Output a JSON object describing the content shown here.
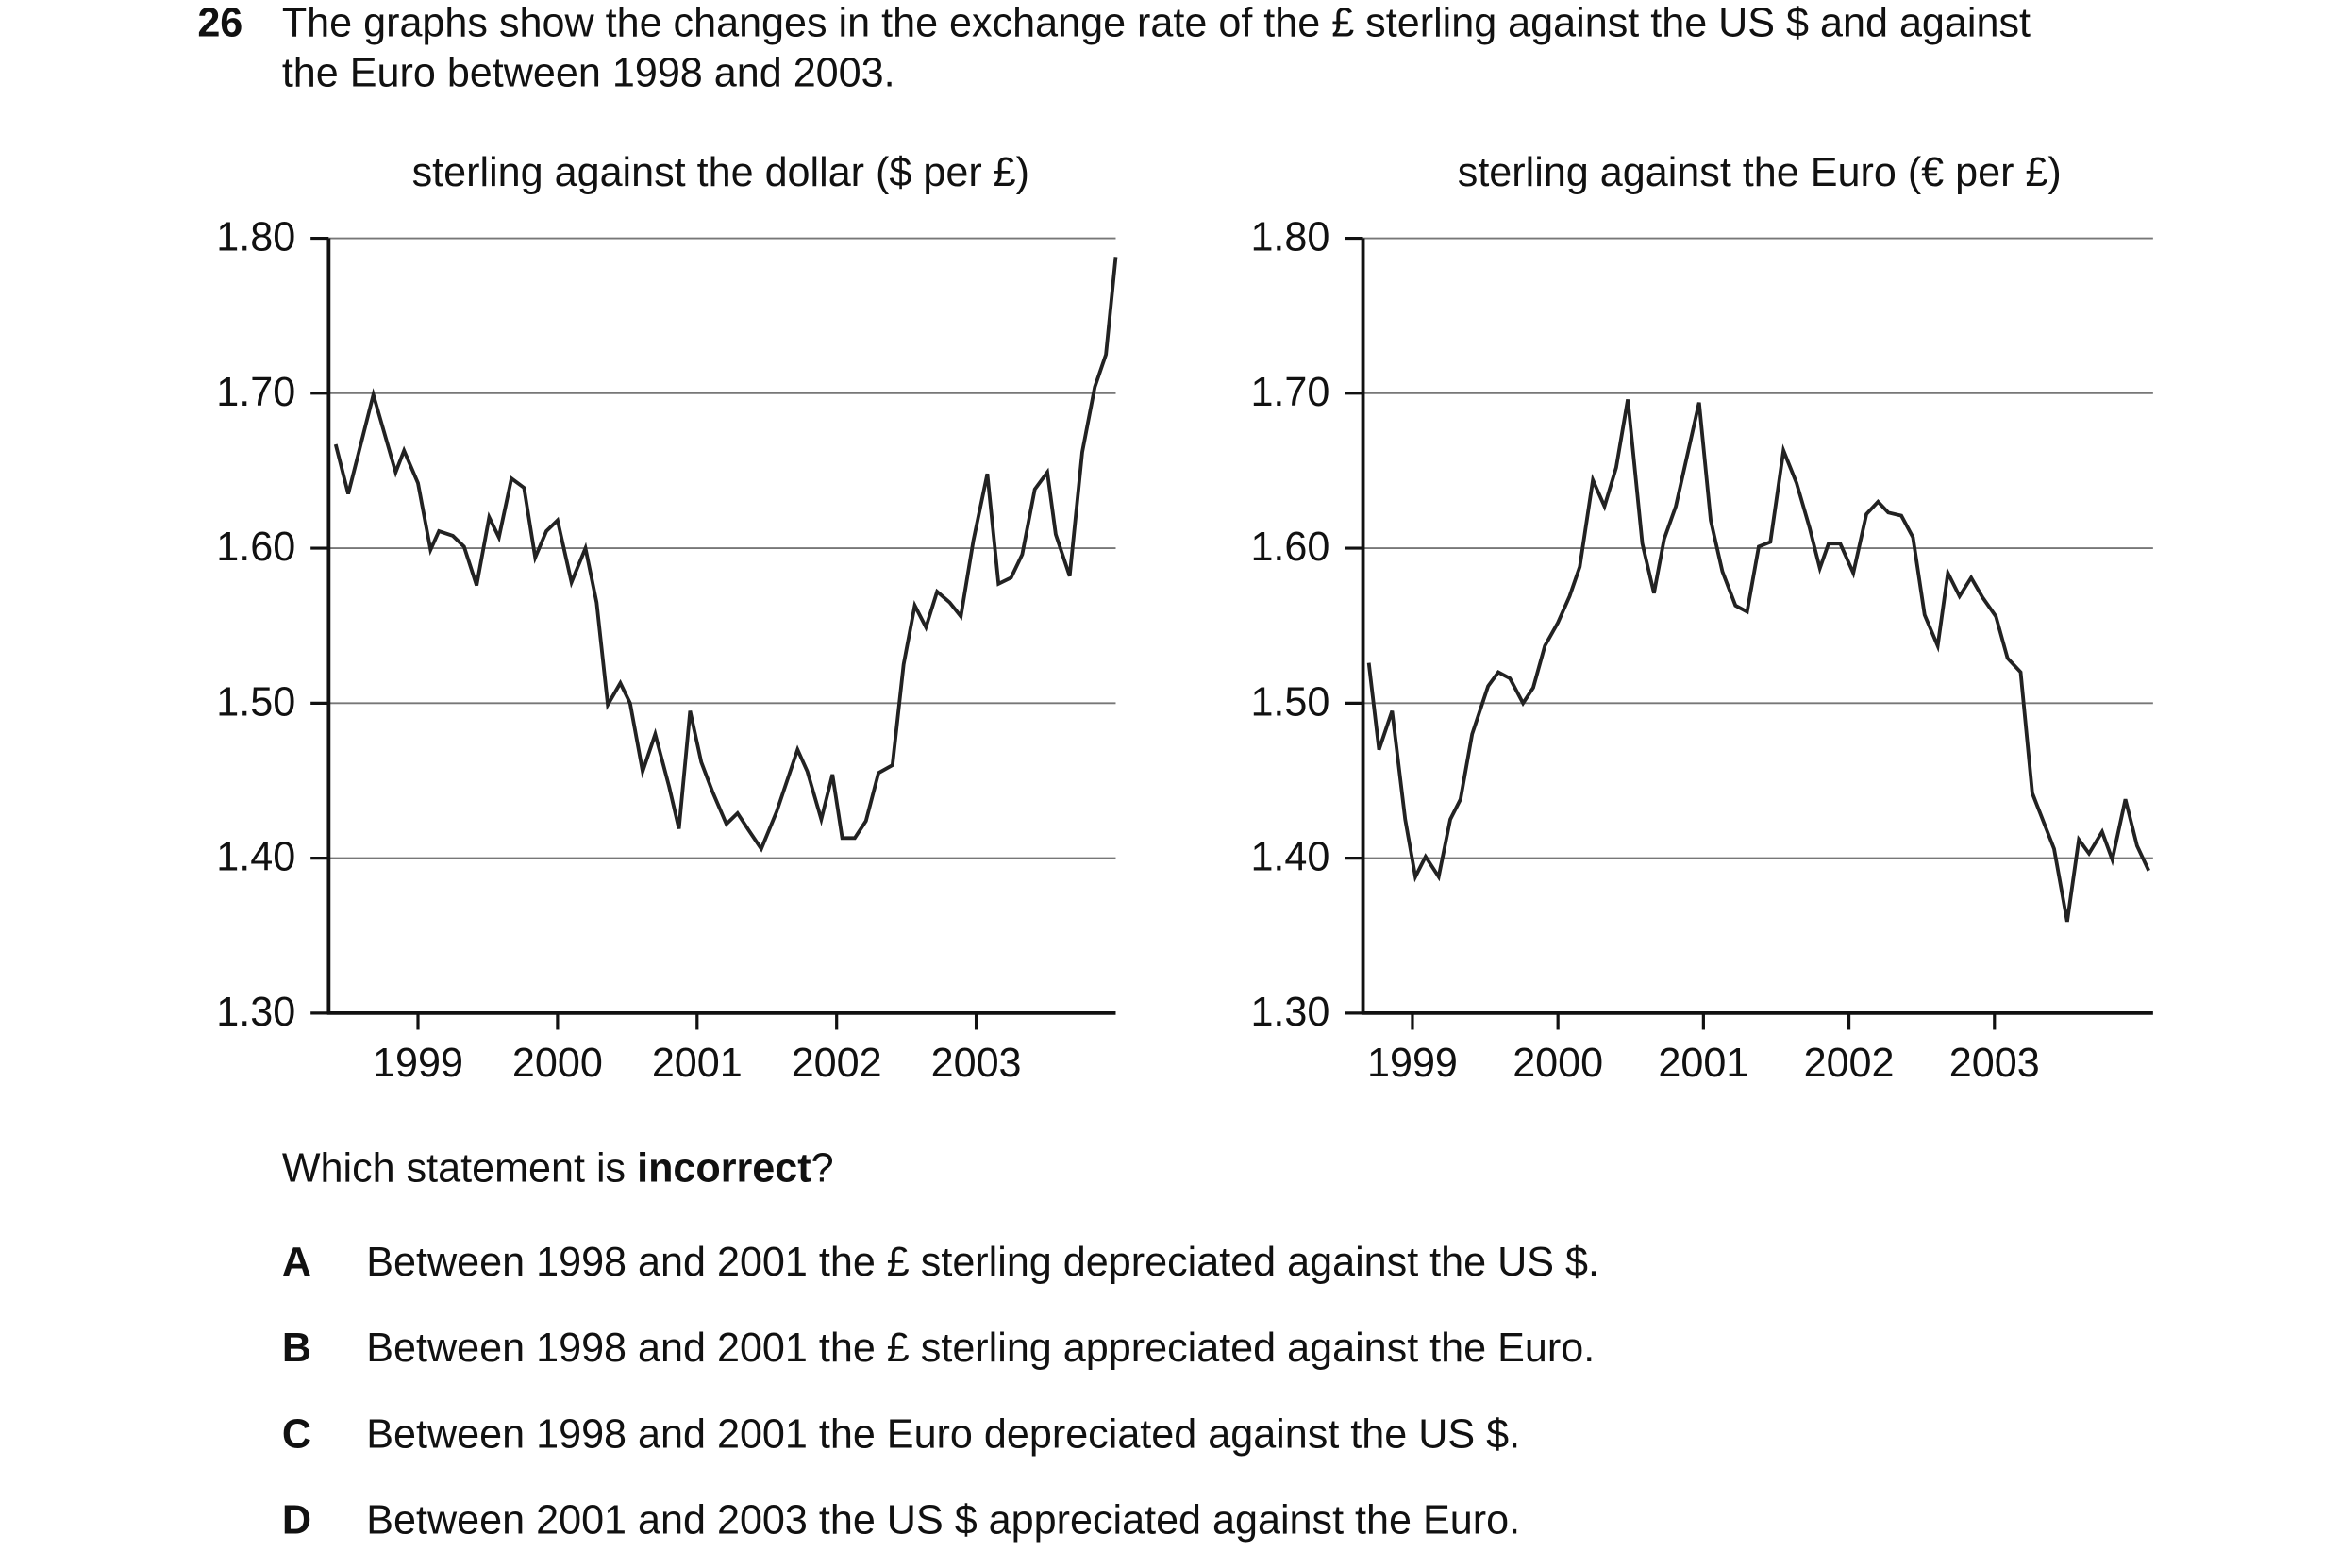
{
  "question": {
    "number": "26",
    "text_lines": [
      "The graphs show the changes in the exchange rate of the £ sterling against the US $ and against",
      "the Euro between 1998 and 2003."
    ],
    "prompt_before": "Which statement is ",
    "prompt_emphasis": "incorrect",
    "prompt_after": "?",
    "options": [
      {
        "letter": "A",
        "text": "Between 1998 and 2001 the £ sterling depreciated against the US $."
      },
      {
        "letter": "B",
        "text": "Between 1998 and 2001 the £ sterling appreciated against the Euro."
      },
      {
        "letter": "C",
        "text": "Between 1998 and 2001 the Euro depreciated against the US $."
      },
      {
        "letter": "D",
        "text": "Between 2001 and 2003 the US $ appreciated against the Euro."
      }
    ]
  },
  "chart_data": [
    {
      "type": "line",
      "title": "sterling against the dollar ($ per £)",
      "color": "#222222",
      "grid": true,
      "xlim": [
        1998.36,
        2004.0
      ],
      "xticks": [
        1999,
        2000,
        2001,
        2002,
        2003
      ],
      "ylim": [
        1.3,
        1.8
      ],
      "yticks": [
        {
          "value": 1.3,
          "label": "1.30"
        },
        {
          "value": 1.4,
          "label": "1.40"
        },
        {
          "value": 1.5,
          "label": "1.50"
        },
        {
          "value": 1.6,
          "label": "1.60"
        },
        {
          "value": 1.7,
          "label": "1.70"
        },
        {
          "value": 1.8,
          "label": "1.80"
        }
      ],
      "x": [
        1998.41,
        1998.5,
        1998.68,
        1998.84,
        1998.9,
        1999.0,
        1999.09,
        1999.15,
        1999.25,
        1999.33,
        1999.42,
        1999.51,
        1999.58,
        1999.67,
        1999.76,
        1999.84,
        1999.92,
        2000.0,
        2000.1,
        2000.2,
        2000.28,
        2000.36,
        2000.45,
        2000.52,
        2000.61,
        2000.7,
        2000.8,
        2000.87,
        2000.95,
        2001.03,
        2001.11,
        2001.21,
        2001.29,
        2001.37,
        2001.46,
        2001.57,
        2001.72,
        2001.79,
        2001.89,
        2001.97,
        2002.04,
        2002.13,
        2002.21,
        2002.3,
        2002.4,
        2002.48,
        2002.56,
        2002.64,
        2002.72,
        2002.81,
        2002.89,
        2002.98,
        2003.08,
        2003.16,
        2003.25,
        2003.33,
        2003.42,
        2003.51,
        2003.57,
        2003.67,
        2003.76,
        2003.85,
        2003.93,
        2004.0
      ],
      "values": [
        1.667,
        1.635,
        1.699,
        1.649,
        1.663,
        1.642,
        1.599,
        1.611,
        1.608,
        1.601,
        1.576,
        1.62,
        1.607,
        1.645,
        1.639,
        1.594,
        1.611,
        1.618,
        1.578,
        1.6,
        1.565,
        1.499,
        1.513,
        1.5,
        1.456,
        1.48,
        1.446,
        1.419,
        1.495,
        1.462,
        1.443,
        1.422,
        1.429,
        1.418,
        1.406,
        1.43,
        1.47,
        1.456,
        1.425,
        1.454,
        1.413,
        1.413,
        1.424,
        1.455,
        1.46,
        1.525,
        1.563,
        1.549,
        1.572,
        1.565,
        1.556,
        1.605,
        1.648,
        1.577,
        1.581,
        1.596,
        1.638,
        1.649,
        1.609,
        1.582,
        1.662,
        1.704,
        1.725,
        1.788
      ]
    },
    {
      "type": "line",
      "title": "sterling against the Euro (€ per £)",
      "color": "#222222",
      "grid": true,
      "xlim": [
        1998.66,
        2004.09
      ],
      "xticks": [
        1999,
        2000,
        2001,
        2002,
        2003
      ],
      "ylim": [
        1.3,
        1.8
      ],
      "yticks": [
        {
          "value": 1.3,
          "label": "1.30"
        },
        {
          "value": 1.4,
          "label": "1.40"
        },
        {
          "value": 1.5,
          "label": "1.50"
        },
        {
          "value": 1.6,
          "label": "1.60"
        },
        {
          "value": 1.7,
          "label": "1.70"
        },
        {
          "value": 1.8,
          "label": "1.80"
        }
      ],
      "x": [
        1998.7,
        1998.77,
        1998.86,
        1998.95,
        1999.02,
        1999.09,
        1999.18,
        1999.26,
        1999.33,
        1999.41,
        1999.52,
        1999.59,
        1999.67,
        1999.76,
        1999.83,
        1999.91,
        2000.0,
        2000.08,
        2000.15,
        2000.24,
        2000.32,
        2000.4,
        2000.48,
        2000.58,
        2000.66,
        2000.73,
        2000.81,
        2000.97,
        2001.05,
        2001.13,
        2001.22,
        2001.3,
        2001.38,
        2001.46,
        2001.55,
        2001.64,
        2001.73,
        2001.8,
        2001.86,
        2001.94,
        2002.03,
        2002.12,
        2002.2,
        2002.27,
        2002.36,
        2002.44,
        2002.52,
        2002.61,
        2002.68,
        2002.76,
        2002.84,
        2002.92,
        2003.01,
        2003.09,
        2003.18,
        2003.26,
        2003.41,
        2003.5,
        2003.58,
        2003.65,
        2003.74,
        2003.81,
        2003.9,
        2003.98,
        2004.06
      ],
      "values": [
        1.526,
        1.47,
        1.495,
        1.425,
        1.388,
        1.401,
        1.388,
        1.425,
        1.438,
        1.48,
        1.511,
        1.52,
        1.516,
        1.5,
        1.51,
        1.537,
        1.552,
        1.569,
        1.588,
        1.644,
        1.627,
        1.652,
        1.696,
        1.603,
        1.571,
        1.606,
        1.627,
        1.694,
        1.618,
        1.585,
        1.563,
        1.559,
        1.601,
        1.604,
        1.663,
        1.642,
        1.613,
        1.587,
        1.603,
        1.603,
        1.584,
        1.622,
        1.63,
        1.623,
        1.621,
        1.607,
        1.557,
        1.537,
        1.584,
        1.569,
        1.581,
        1.568,
        1.556,
        1.529,
        1.52,
        1.442,
        1.406,
        1.359,
        1.412,
        1.403,
        1.417,
        1.399,
        1.438,
        1.408,
        1.392
      ]
    }
  ]
}
